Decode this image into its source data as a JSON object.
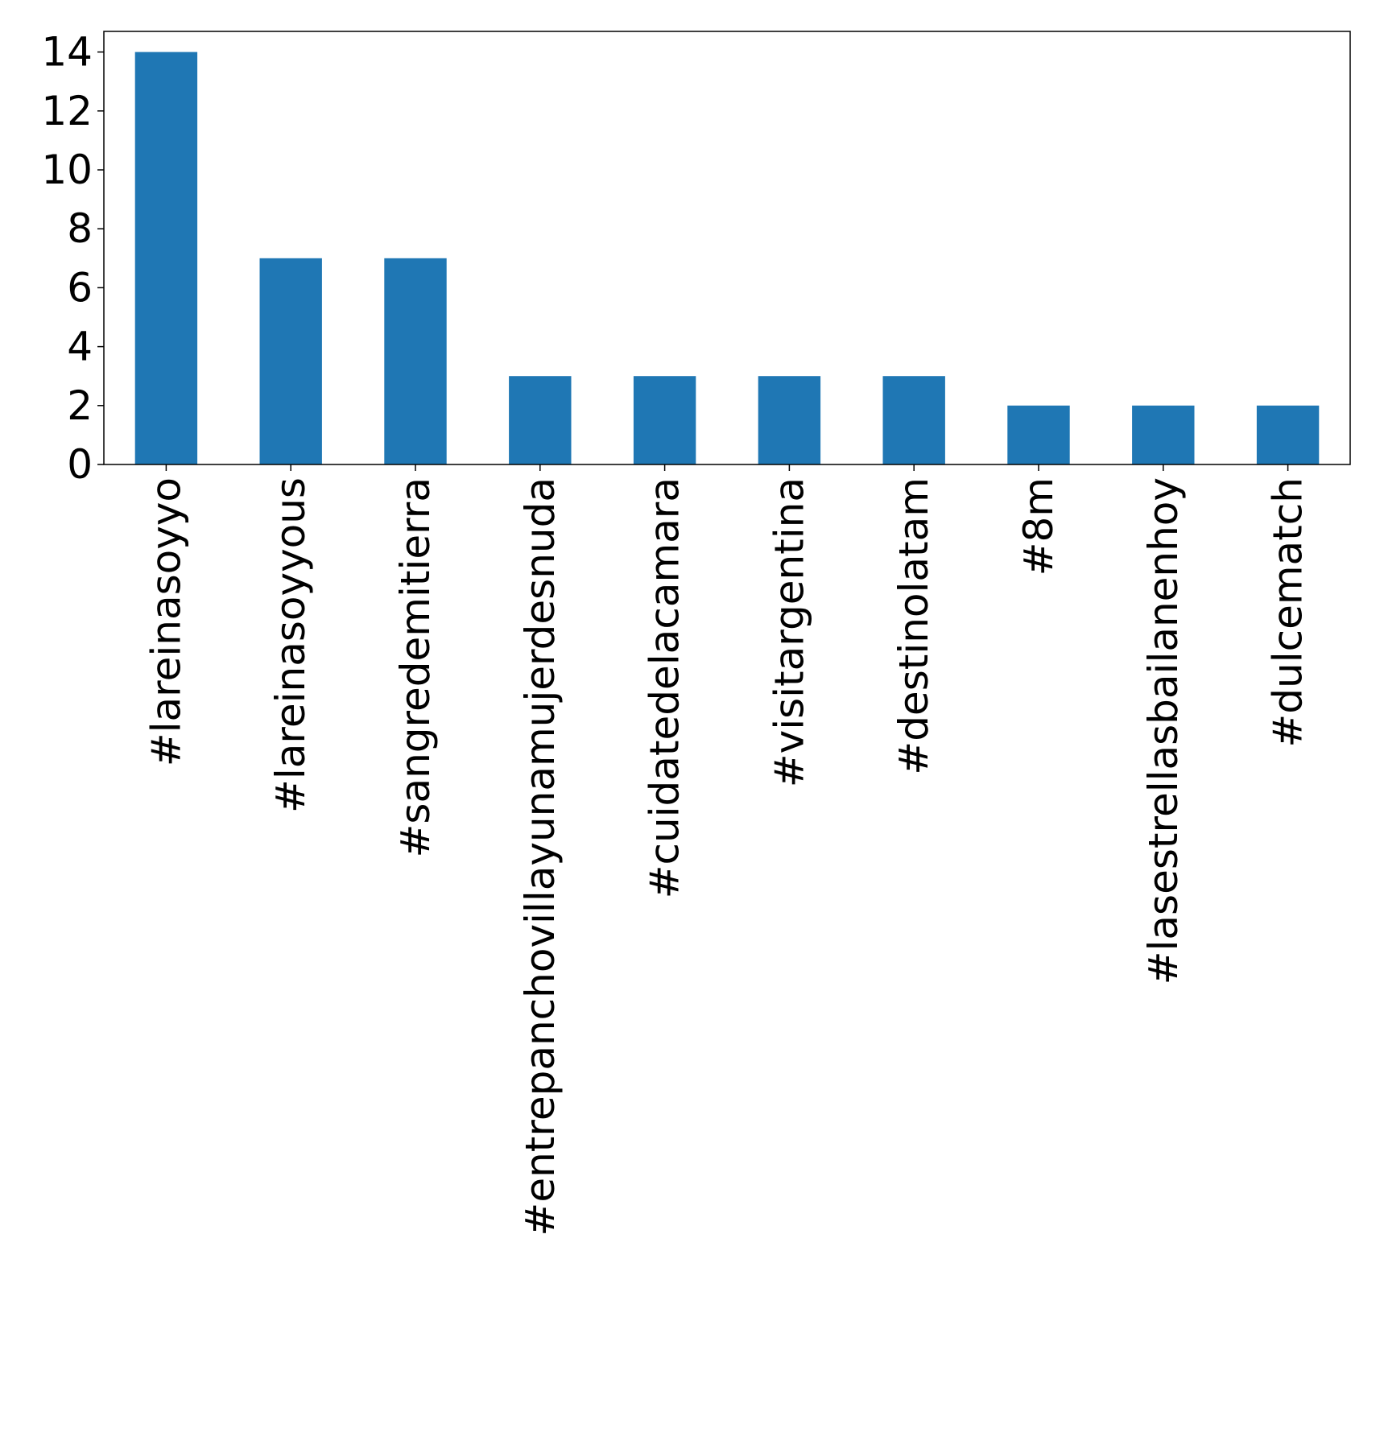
{
  "chart_data": {
    "type": "bar",
    "title": "",
    "xlabel": "",
    "ylabel": "",
    "categories": [
      "#lareinasoyyo",
      "#lareinasoyyous",
      "#sangredemitierra",
      "#entrepanchovillayunamujerdesnuda",
      "#cuidatedelacamara",
      "#visitargentina",
      "#destinolatam",
      "#8m",
      "#lasestrellasbailanenhoy",
      "#dulcematch"
    ],
    "values": [
      14,
      7,
      7,
      3,
      3,
      3,
      3,
      2,
      2,
      2
    ],
    "ylim": [
      0,
      14.7
    ],
    "yticks": [
      0,
      2,
      4,
      6,
      8,
      10,
      12,
      14
    ],
    "grid": false,
    "legend": false,
    "colors": {
      "bar": "#1f77b4",
      "axis": "#000000",
      "background": "#ffffff"
    }
  }
}
